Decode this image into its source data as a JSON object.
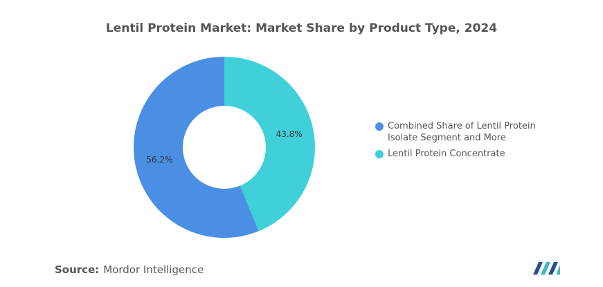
{
  "chart_data": {
    "type": "donut",
    "title": "Lentil Protein Market: Market Share by Product Type, 2024",
    "categories": [
      "Combined Share of Lentil Protein Isolate Segment and More",
      "Lentil Protein Concentrate"
    ],
    "values": [
      56.2,
      43.8
    ],
    "value_labels": [
      "56.2%",
      "43.8%"
    ],
    "colors": [
      "#4a8fe3",
      "#3fd0da"
    ]
  },
  "source_label": "Source:",
  "source": "Mordor Intelligence"
}
